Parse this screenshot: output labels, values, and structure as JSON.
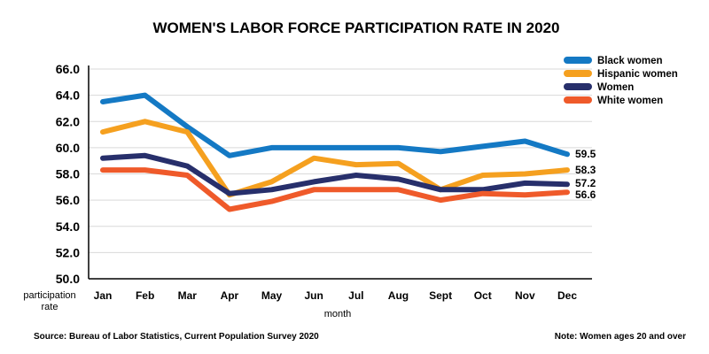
{
  "chart_data": {
    "type": "line",
    "title": "WOMEN'S LABOR FORCE PARTICIPATION RATE IN 2020",
    "xlabel": "month",
    "ylabel": [
      "participation",
      "rate"
    ],
    "categories": [
      "Jan",
      "Feb",
      "Mar",
      "Apr",
      "May",
      "Jun",
      "Jul",
      "Aug",
      "Sept",
      "Oct",
      "Nov",
      "Dec"
    ],
    "ylim": [
      50.0,
      66.0
    ],
    "yticks": [
      "50.0",
      "52.0",
      "54.0",
      "56.0",
      "58.0",
      "60.0",
      "62.0",
      "64.0",
      "66.0"
    ],
    "grid": "horizontal",
    "legend_position": "top-right",
    "series": [
      {
        "name": "Black women",
        "color": "#1479c4",
        "values": [
          63.5,
          64.0,
          61.6,
          59.4,
          60.0,
          60.0,
          60.0,
          60.0,
          59.7,
          60.1,
          60.5,
          59.5
        ],
        "end_label": "59.5"
      },
      {
        "name": "Hispanic women",
        "color": "#f5a01f",
        "values": [
          61.2,
          62.0,
          61.2,
          56.4,
          57.4,
          59.2,
          58.7,
          58.8,
          56.8,
          57.9,
          58.0,
          58.3
        ],
        "end_label": "58.3"
      },
      {
        "name": "Women",
        "color": "#272f6b",
        "values": [
          59.2,
          59.4,
          58.6,
          56.5,
          56.8,
          57.4,
          57.9,
          57.6,
          56.8,
          56.8,
          57.3,
          57.2
        ],
        "end_label": "57.2"
      },
      {
        "name": "White women",
        "color": "#ef5a2a",
        "values": [
          58.3,
          58.3,
          57.9,
          55.3,
          55.9,
          56.8,
          56.8,
          56.8,
          56.0,
          56.5,
          56.4,
          56.6
        ],
        "end_label": "56.6"
      }
    ]
  },
  "footer": {
    "source": "Source: Bureau of Labor Statistics, Current Population Survey 2020",
    "note": "Note: Women ages 20 and over"
  },
  "colors": {
    "grid": "#d9d9d9",
    "axis": "#000000",
    "text": "#000000"
  }
}
